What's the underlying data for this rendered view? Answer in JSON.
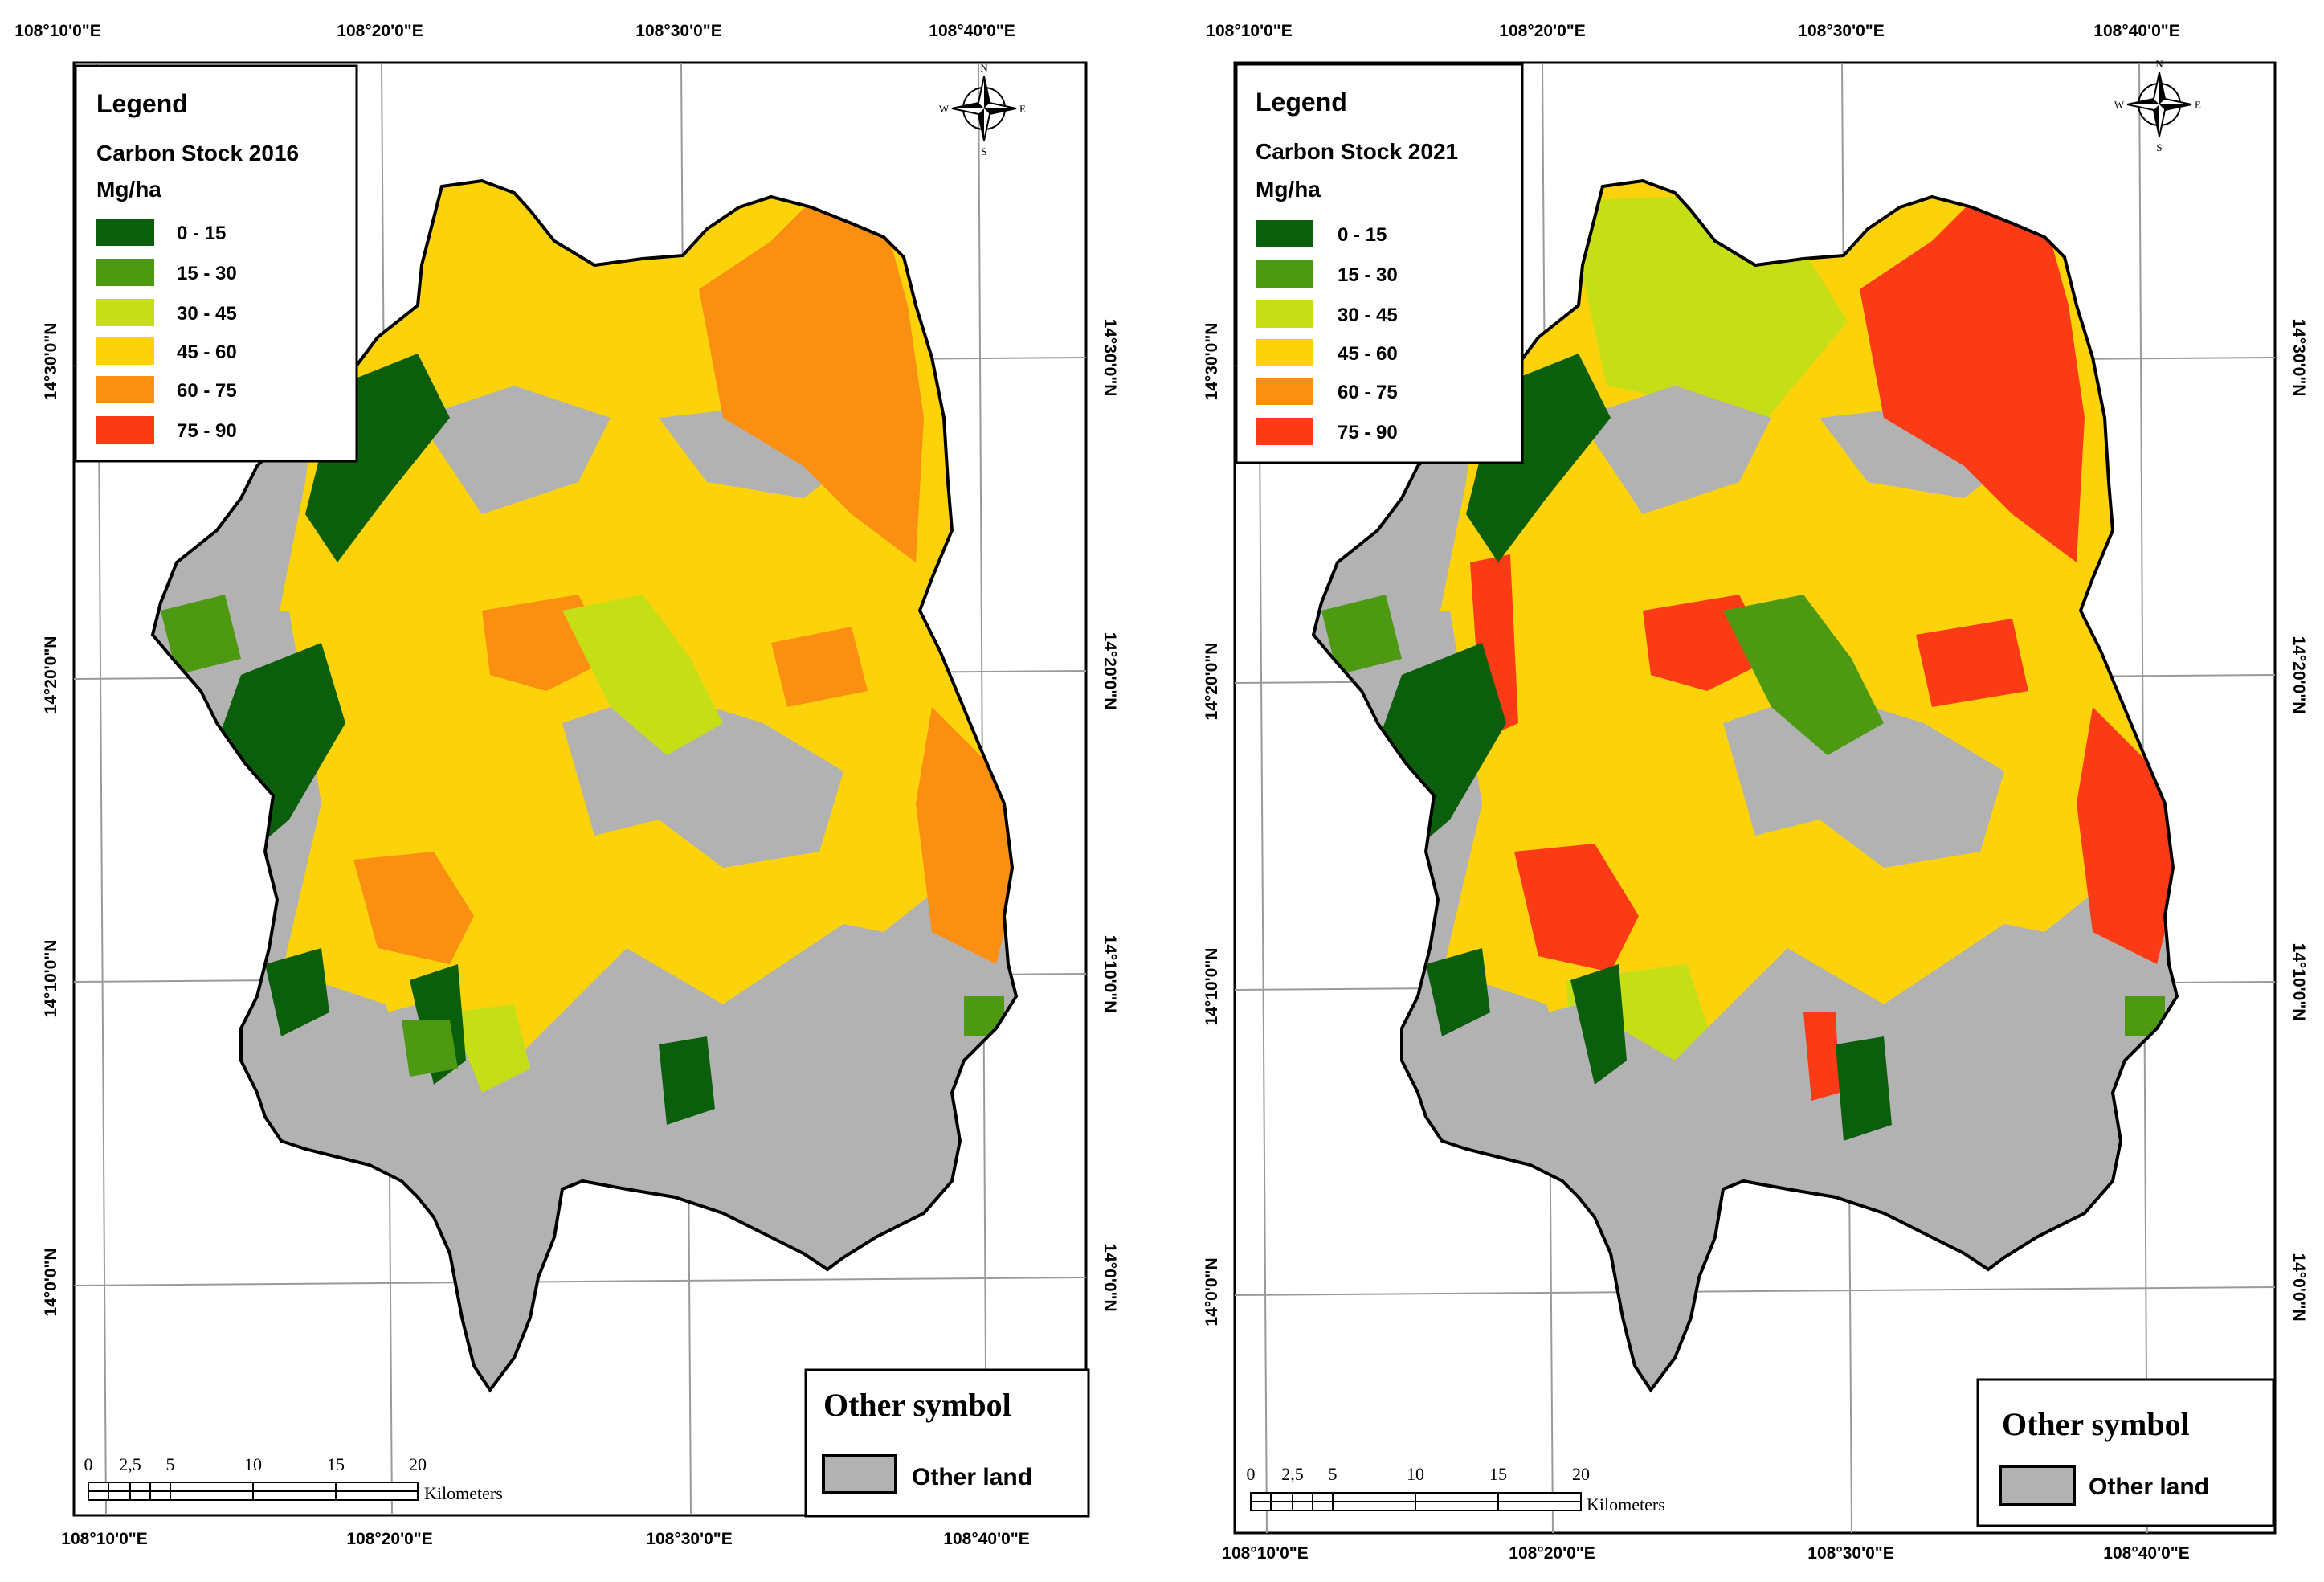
{
  "panels": [
    {
      "id": "left",
      "lon_labels": [
        "108°10'0\"E",
        "108°20'0\"E",
        "108°30'0\"E",
        "108°40'0\"E"
      ],
      "lat_labels": [
        "14°30'0\"N",
        "14°20'0\"N",
        "14°10'0\"N",
        "14°0'0\"N"
      ],
      "legend": {
        "title": "Legend",
        "subtitle": "Carbon Stock 2016",
        "unit": "Mg/ha",
        "classes": [
          {
            "label": "0 - 15",
            "color": "#0b5e0b"
          },
          {
            "label": "15 - 30",
            "color": "#4d9a12"
          },
          {
            "label": "30 - 45",
            "color": "#c5de16"
          },
          {
            "label": "45 - 60",
            "color": "#fcd20a"
          },
          {
            "label": "60 - 75",
            "color": "#fb8f12"
          },
          {
            "label": "75 - 90",
            "color": "#fb3a16"
          }
        ]
      },
      "other_symbol": {
        "title": "Other symbol",
        "label": "Other land",
        "color": "#b2b2b2"
      },
      "scale_bar": {
        "ticks": [
          "0",
          "2,5",
          "5",
          "10",
          "15",
          "20"
        ],
        "unit": "Kilometers"
      },
      "north_arrow": {
        "icon": "compass-rose",
        "letters": [
          "N",
          "E",
          "S",
          "W"
        ]
      }
    },
    {
      "id": "right",
      "lon_labels": [
        "108°10'0\"E",
        "108°20'0\"E",
        "108°30'0\"E",
        "108°40'0\"E"
      ],
      "lat_labels": [
        "14°30'0\"N",
        "14°20'0\"N",
        "14°10'0\"N",
        "14°0'0\"N"
      ],
      "legend": {
        "title": "Legend",
        "subtitle": "Carbon Stock 2021",
        "unit": "Mg/ha",
        "classes": [
          {
            "label": "0 - 15",
            "color": "#0b5e0b"
          },
          {
            "label": "15 - 30",
            "color": "#4d9a12"
          },
          {
            "label": "30 - 45",
            "color": "#c5de16"
          },
          {
            "label": "45 - 60",
            "color": "#fcd20a"
          },
          {
            "label": "60 - 75",
            "color": "#fb8f12"
          },
          {
            "label": "75 - 90",
            "color": "#fb3a16"
          }
        ]
      },
      "other_symbol": {
        "title": "Other symbol",
        "label": "Other land",
        "color": "#b2b2b2"
      },
      "scale_bar": {
        "ticks": [
          "0",
          "2,5",
          "5",
          "10",
          "15",
          "20"
        ],
        "unit": "Kilometers"
      },
      "north_arrow": {
        "icon": "compass-rose",
        "letters": [
          "N",
          "E",
          "S",
          "W"
        ]
      }
    }
  ]
}
